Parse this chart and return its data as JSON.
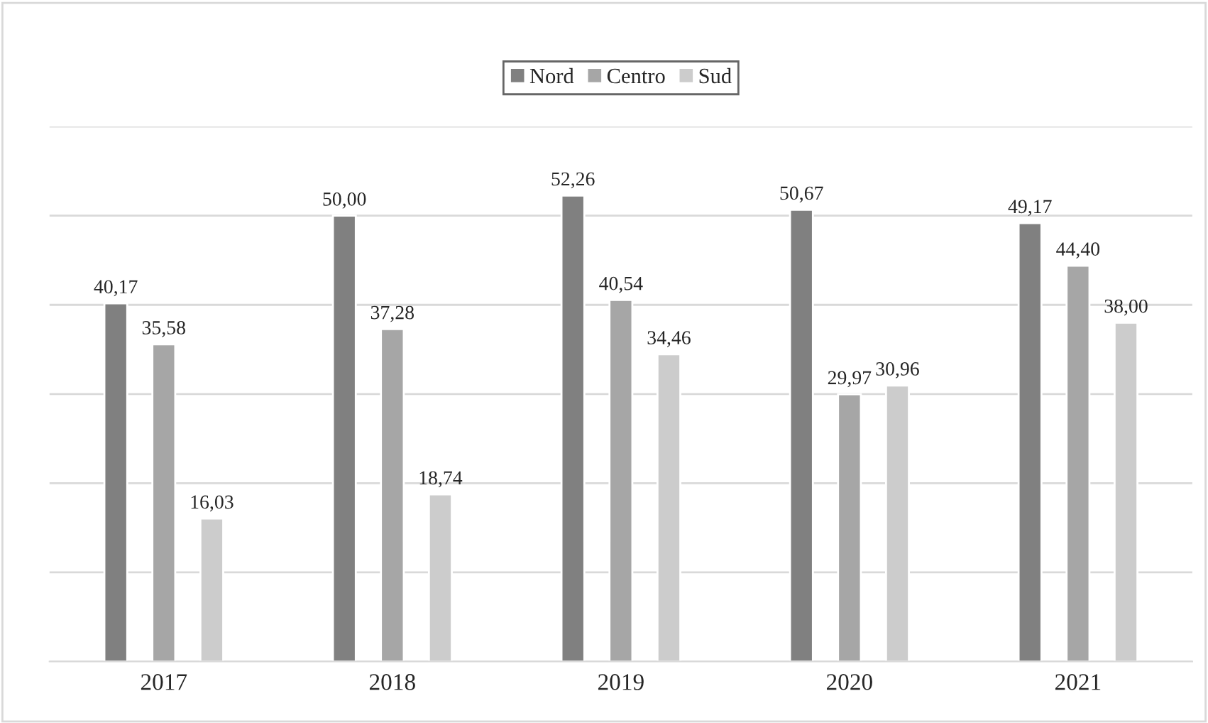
{
  "chart_data": {
    "type": "bar",
    "categories": [
      "2017",
      "2018",
      "2019",
      "2020",
      "2021"
    ],
    "series": [
      {
        "name": "Nord",
        "color": "#808080",
        "values": [
          40.17,
          50.0,
          52.26,
          50.67,
          49.17
        ],
        "value_labels": [
          "40,17",
          "50,00",
          "52,26",
          "50,67",
          "49,17"
        ]
      },
      {
        "name": "Centro",
        "color": "#a6a6a6",
        "values": [
          35.58,
          37.28,
          40.54,
          29.97,
          44.4
        ],
        "value_labels": [
          "35,58",
          "37,28",
          "40,54",
          "29,97",
          "44,40"
        ]
      },
      {
        "name": "Sud",
        "color": "#cccccc",
        "values": [
          16.03,
          18.74,
          34.46,
          30.96,
          38.0
        ],
        "value_labels": [
          "16,03",
          "18,74",
          "34,46",
          "30,96",
          "38,00"
        ]
      }
    ],
    "ylim": [
      0,
      60
    ],
    "yticks": [
      {
        "value": 0,
        "label": null
      },
      {
        "value": 10,
        "label": null
      },
      {
        "value": 20,
        "label": null
      },
      {
        "value": 30,
        "label": null
      },
      {
        "value": 40,
        "label": null
      },
      {
        "value": 50,
        "label": null
      },
      {
        "value": 60,
        "label": null
      }
    ],
    "tick_labels": "x",
    "grid": "y",
    "legend": "top"
  }
}
